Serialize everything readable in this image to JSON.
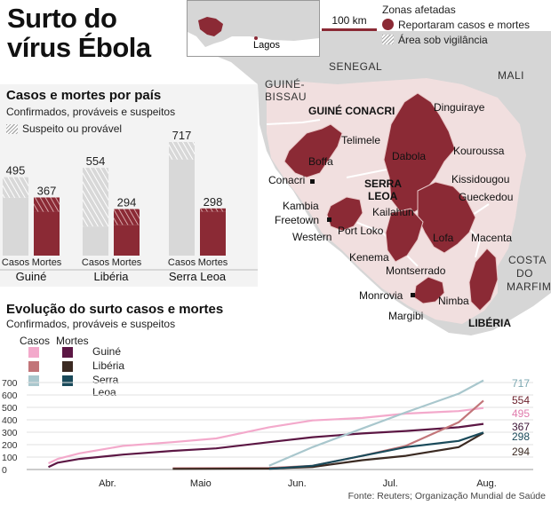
{
  "title_line1": "Surto do",
  "title_line2": "vírus Ébola",
  "scale": "100 km",
  "inset_city": "Lagos",
  "legend": {
    "heading": "Zonas afetadas",
    "reported": "Reportaram casos e mortes",
    "surveillance": "Área sob vigilância"
  },
  "countries_neighbors": {
    "senegal": "SENEGAL",
    "guinea_bissau_1": "GUINÉ-",
    "guinea_bissau_2": "BISSAU",
    "mali": "MALI",
    "cote_1": "COSTA",
    "cote_2": "DO",
    "cote_3": "MARFIM"
  },
  "countries_affected": {
    "guinea": "GUINÉ CONACRI",
    "sierra_1": "SERRA",
    "sierra_2": "LEOA",
    "liberia": "LIBÉRIA"
  },
  "places": {
    "dinguiraye": "Dinguiraye",
    "telimele": "Telimele",
    "boffa": "Boffa",
    "dabola": "Dabola",
    "kouroussa": "Kouroussa",
    "kissidougou": "Kissidougou",
    "gueckedou": "Gueckedou",
    "conacri": "Conacri",
    "kambia": "Kambia",
    "freetown": "Freetown",
    "western": "Western",
    "port_loko": "Port Loko",
    "kailahun": "Kailahun",
    "lofa": "Lofa",
    "macenta": "Macenta",
    "kenema": "Kenema",
    "montserrado": "Montserrado",
    "monrovia": "Monrovia",
    "nimba": "Nimba",
    "margibi": "Margibi"
  },
  "bar_panel": {
    "title": "Casos e mortes por país",
    "subtitle": "Confirmados, prováveis e suspeitos",
    "hatch_legend": "Suspeito ou provável",
    "casos_label": "Casos",
    "mortes_label": "Mortes"
  },
  "colors": {
    "reported": "#8b2a35",
    "surveillance": "#f1dfdf",
    "land": "#d6d6d6",
    "sea": "#ffffff",
    "guinea_cases": "#f3a9cb",
    "guinea_deaths": "#5c1744",
    "liberia_cases": "#c27579",
    "liberia_deaths": "#3b2a22",
    "sierra_cases": "#a9c7cd",
    "sierra_deaths": "#1a4a5a"
  },
  "chart_data": [
    {
      "type": "bar",
      "title": "Casos e mortes por país",
      "subtitle": "Confirmados, prováveis e suspeitos",
      "categories": [
        "Guiné",
        "Libéria",
        "Serra Leoa"
      ],
      "series": [
        {
          "name": "Casos",
          "values": [
            495,
            554,
            717
          ],
          "suspected_or_probable": [
            130,
            370,
            110
          ]
        },
        {
          "name": "Mortes",
          "values": [
            367,
            294,
            298
          ],
          "suspected_or_probable": [
            90,
            100,
            20
          ]
        }
      ],
      "ylim": [
        0,
        717
      ]
    },
    {
      "type": "line",
      "title": "Evolução do surto casos e mortes",
      "subtitle": "Confirmados, prováveis e suspeitos",
      "x_ticks": [
        "Abr.",
        "Maio",
        "Jun.",
        "Jul.",
        "Aug."
      ],
      "y_ticks": [
        0,
        100,
        200,
        300,
        400,
        500,
        600,
        700
      ],
      "ylim": [
        0,
        700
      ],
      "legend_headers": [
        "Casos",
        "Mortes"
      ],
      "legend_rows": [
        "Guiné",
        "Libéria",
        "Serra Leoa"
      ],
      "series": [
        {
          "name": "Guiné Casos",
          "x": [
            "2014-03-22",
            "2014-03-25",
            "2014-04-01",
            "2014-04-15",
            "2014-05-01",
            "2014-05-15",
            "2014-06-01",
            "2014-06-15",
            "2014-07-01",
            "2014-07-15",
            "2014-08-01",
            "2014-08-09"
          ],
          "y": [
            50,
            85,
            130,
            190,
            220,
            250,
            340,
            395,
            415,
            450,
            470,
            495
          ]
        },
        {
          "name": "Guiné Mortes",
          "x": [
            "2014-03-22",
            "2014-03-25",
            "2014-04-01",
            "2014-04-15",
            "2014-05-01",
            "2014-05-15",
            "2014-06-01",
            "2014-06-15",
            "2014-07-01",
            "2014-07-15",
            "2014-08-01",
            "2014-08-09"
          ],
          "y": [
            20,
            55,
            85,
            120,
            150,
            170,
            220,
            260,
            290,
            310,
            340,
            367
          ]
        },
        {
          "name": "Libéria Casos",
          "x": [
            "2014-05-01",
            "2014-06-01",
            "2014-06-15",
            "2014-07-01",
            "2014-07-15",
            "2014-08-01",
            "2014-08-09"
          ],
          "y": [
            10,
            12,
            30,
            110,
            190,
            380,
            554
          ]
        },
        {
          "name": "Libéria Mortes",
          "x": [
            "2014-05-01",
            "2014-06-01",
            "2014-06-15",
            "2014-07-01",
            "2014-07-15",
            "2014-08-01",
            "2014-08-09"
          ],
          "y": [
            5,
            8,
            20,
            75,
            110,
            180,
            294
          ]
        },
        {
          "name": "Serra Leoa Casos",
          "x": [
            "2014-06-01",
            "2014-06-15",
            "2014-07-01",
            "2014-07-15",
            "2014-08-01",
            "2014-08-09"
          ],
          "y": [
            30,
            180,
            330,
            460,
            610,
            717
          ]
        },
        {
          "name": "Serra Leoa Mortes",
          "x": [
            "2014-06-01",
            "2014-06-15",
            "2014-07-01",
            "2014-07-15",
            "2014-08-01",
            "2014-08-09"
          ],
          "y": [
            5,
            30,
            110,
            180,
            230,
            298
          ]
        }
      ],
      "end_labels": [
        "717",
        "554",
        "495",
        "367",
        "298",
        "294"
      ]
    }
  ],
  "source": "Fonte: Reuters; Organização Mundial de Saúde"
}
